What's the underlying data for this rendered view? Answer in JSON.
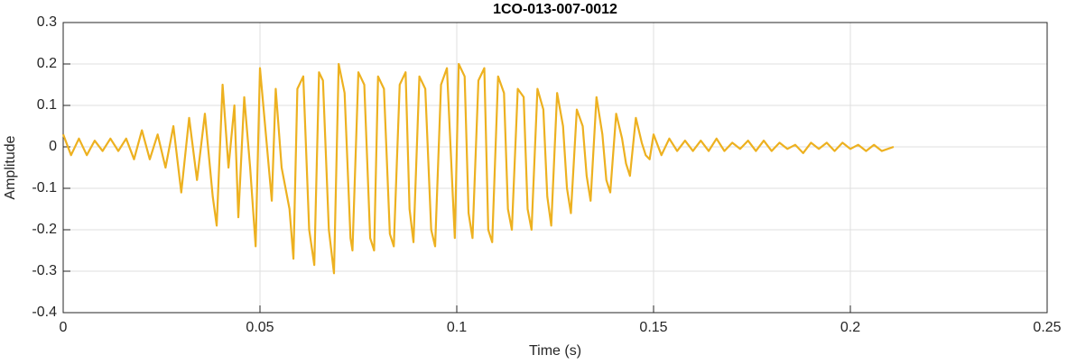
{
  "chart_data": {
    "type": "line",
    "title": "1CO-013-007-0012",
    "x_label": "Time (s)",
    "y_label": "Amplitude",
    "color": "#edb120",
    "grid": true,
    "xlim": [
      0,
      0.25
    ],
    "xticks": [
      0,
      0.05,
      0.1,
      0.15,
      0.2,
      0.25
    ],
    "ylim": [
      -0.4,
      0.3
    ],
    "yticks": [
      -0.4,
      -0.3,
      -0.2,
      -0.1,
      0,
      0.1,
      0.2,
      0.3
    ],
    "x": [
      0,
      0.002,
      0.004,
      0.006,
      0.008,
      0.01,
      0.012,
      0.014,
      0.016,
      0.018,
      0.02,
      0.022,
      0.024,
      0.026,
      0.028,
      0.03,
      0.032,
      0.034,
      0.036,
      0.038,
      0.039,
      0.0405,
      0.042,
      0.0435,
      0.0445,
      0.046,
      0.0475,
      0.0489,
      0.05,
      0.0515,
      0.053,
      0.054,
      0.0555,
      0.0575,
      0.0585,
      0.0595,
      0.061,
      0.0625,
      0.0638,
      0.065,
      0.066,
      0.0675,
      0.0688,
      0.07,
      0.0715,
      0.073,
      0.0735,
      0.075,
      0.0765,
      0.078,
      0.079,
      0.08,
      0.0815,
      0.083,
      0.084,
      0.0855,
      0.087,
      0.088,
      0.089,
      0.0905,
      0.092,
      0.0935,
      0.0945,
      0.096,
      0.0975,
      0.099,
      0.0995,
      0.1005,
      0.102,
      0.103,
      0.104,
      0.1055,
      0.107,
      0.108,
      0.109,
      0.1105,
      0.112,
      0.113,
      0.114,
      0.1155,
      0.117,
      0.118,
      0.119,
      0.1205,
      0.122,
      0.123,
      0.124,
      0.1255,
      0.127,
      0.128,
      0.129,
      0.1305,
      0.132,
      0.133,
      0.134,
      0.1355,
      0.137,
      0.138,
      0.139,
      0.1405,
      0.142,
      0.143,
      0.144,
      0.1455,
      0.147,
      0.148,
      0.149,
      0.15,
      0.152,
      0.154,
      0.156,
      0.158,
      0.16,
      0.162,
      0.164,
      0.166,
      0.168,
      0.17,
      0.172,
      0.174,
      0.176,
      0.178,
      0.18,
      0.182,
      0.184,
      0.186,
      0.188,
      0.19,
      0.192,
      0.194,
      0.196,
      0.198,
      0.2,
      0.202,
      0.204,
      0.206,
      0.208,
      0.211
    ],
    "values": [
      0.03,
      -0.02,
      0.02,
      -0.02,
      0.015,
      -0.01,
      0.02,
      -0.01,
      0.02,
      -0.03,
      0.04,
      -0.03,
      0.03,
      -0.05,
      0.05,
      -0.11,
      0.07,
      -0.08,
      0.08,
      -0.12,
      -0.19,
      0.15,
      -0.05,
      0.1,
      -0.17,
      0.12,
      -0.05,
      -0.24,
      0.19,
      0.03,
      -0.13,
      0.14,
      -0.05,
      -0.15,
      -0.27,
      0.14,
      0.17,
      -0.2,
      -0.285,
      0.18,
      0.16,
      -0.2,
      -0.305,
      0.2,
      0.13,
      -0.22,
      -0.25,
      0.18,
      0.15,
      -0.22,
      -0.25,
      0.17,
      0.14,
      -0.21,
      -0.24,
      0.15,
      0.18,
      -0.15,
      -0.23,
      0.17,
      0.14,
      -0.2,
      -0.24,
      0.15,
      0.19,
      -0.12,
      -0.22,
      0.2,
      0.17,
      -0.16,
      -0.22,
      0.16,
      0.19,
      -0.2,
      -0.23,
      0.17,
      0.13,
      -0.15,
      -0.2,
      0.14,
      0.12,
      -0.15,
      -0.2,
      0.14,
      0.09,
      -0.12,
      -0.19,
      0.13,
      0.05,
      -0.1,
      -0.16,
      0.09,
      0.05,
      -0.07,
      -0.13,
      0.12,
      0.03,
      -0.08,
      -0.11,
      0.08,
      0.02,
      -0.04,
      -0.07,
      0.07,
      0.01,
      -0.02,
      -0.03,
      0.03,
      -0.02,
      0.02,
      -0.01,
      0.015,
      -0.01,
      0.015,
      -0.01,
      0.02,
      -0.01,
      0.01,
      -0.005,
      0.015,
      -0.01,
      0.015,
      -0.01,
      0.01,
      -0.005,
      0.005,
      -0.015,
      0.01,
      -0.005,
      0.01,
      -0.01,
      0.01,
      -0.005,
      0.005,
      -0.01,
      0.005,
      -0.01,
      0
    ]
  }
}
